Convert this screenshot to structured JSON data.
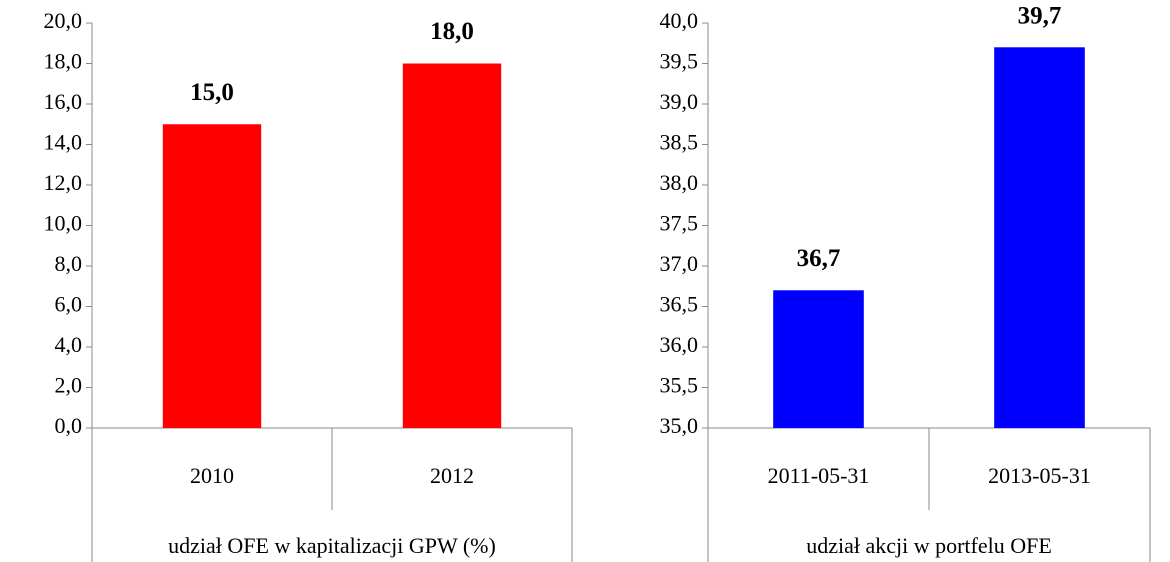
{
  "chart_data": [
    {
      "type": "bar",
      "xlabel": "udział OFE w kapitalizacji GPW (%)",
      "categories": [
        "2010",
        "2012"
      ],
      "values": [
        15.0,
        18.0
      ],
      "value_labels": [
        "15,0",
        "18,0"
      ],
      "color": "#ff0000",
      "ylim": [
        0,
        20
      ],
      "yticks": [
        {
          "value": 0,
          "label": "0,0"
        },
        {
          "value": 2,
          "label": "2,0"
        },
        {
          "value": 4,
          "label": "4,0"
        },
        {
          "value": 6,
          "label": "6,0"
        },
        {
          "value": 8,
          "label": "8,0"
        },
        {
          "value": 10,
          "label": "10,0"
        },
        {
          "value": 12,
          "label": "12,0"
        },
        {
          "value": 14,
          "label": "14,0"
        },
        {
          "value": 16,
          "label": "16,0"
        },
        {
          "value": 18,
          "label": "18,0"
        },
        {
          "value": 20,
          "label": "20,0"
        }
      ],
      "grid": false
    },
    {
      "type": "bar",
      "xlabel": "udział akcji w portfelu OFE",
      "categories": [
        "2011-05-31",
        "2013-05-31"
      ],
      "values": [
        36.7,
        39.7
      ],
      "value_labels": [
        "36,7",
        "39,7"
      ],
      "color": "#0000ff",
      "ylim": [
        35,
        40
      ],
      "yticks": [
        {
          "value": 35,
          "label": "35,0"
        },
        {
          "value": 35.5,
          "label": "35,5"
        },
        {
          "value": 36,
          "label": "36,0"
        },
        {
          "value": 36.5,
          "label": "36,5"
        },
        {
          "value": 37,
          "label": "37,0"
        },
        {
          "value": 37.5,
          "label": "37,5"
        },
        {
          "value": 38,
          "label": "38,0"
        },
        {
          "value": 38.5,
          "label": "38,5"
        },
        {
          "value": 39,
          "label": "39,0"
        },
        {
          "value": 39.5,
          "label": "39,5"
        },
        {
          "value": 40,
          "label": "40,0"
        }
      ],
      "grid": false
    }
  ]
}
